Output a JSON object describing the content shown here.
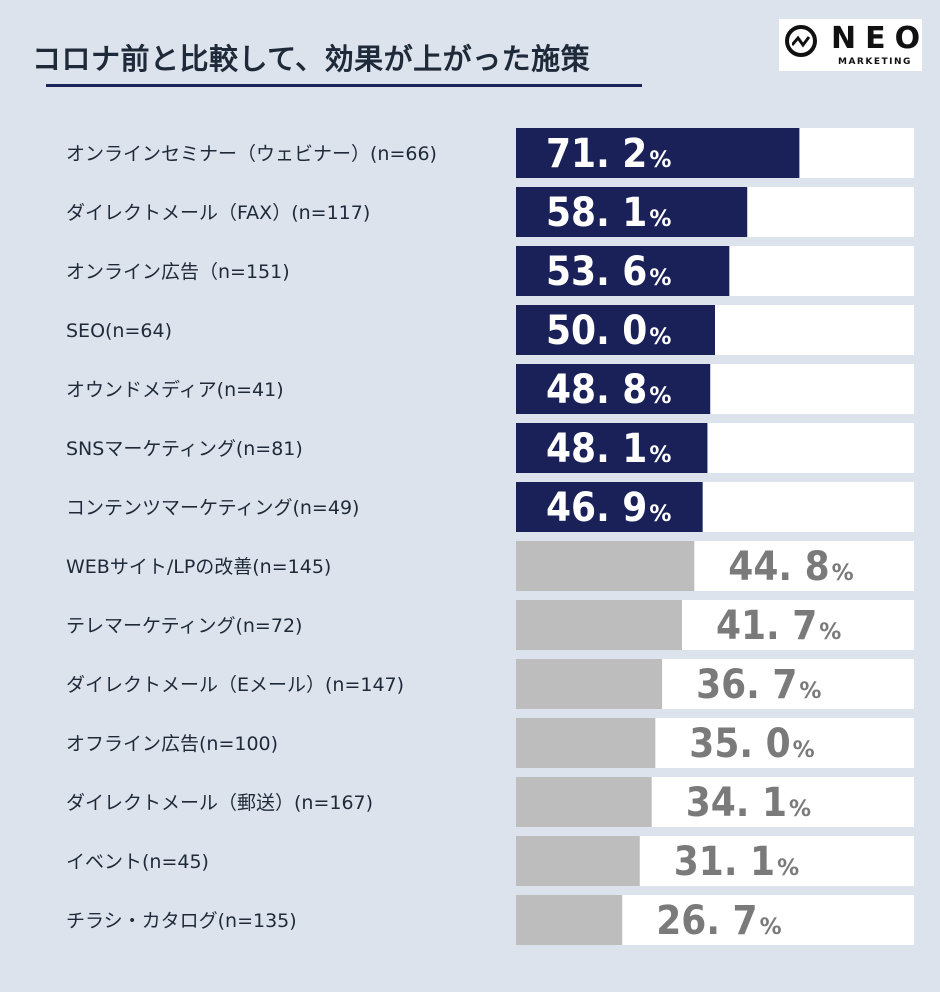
{
  "header": {
    "title": "コロナ前と比較して、効果が上がった施策",
    "logo_text": "NEO",
    "logo_sub": "MARKETING"
  },
  "colors": {
    "highlight_bar": "#1a2159",
    "other_bar": "#bdbdbd",
    "track": "#ffffff",
    "highlight_text": "#ffffff",
    "other_text": "#7a7a7a"
  },
  "chart_data": {
    "type": "bar",
    "orientation": "horizontal",
    "title": "コロナ前と比較して、効果が上がった施策",
    "unit": "%",
    "xlim": [
      0,
      100
    ],
    "highlight_count": 7,
    "categories": [
      "オンラインセミナー（ウェビナー）(n=66)",
      "ダイレクトメール（FAX）(n=117)",
      "オンライン広告（n=151)",
      "SEO(n=64)",
      "オウンドメディア(n=41)",
      "SNSマーケティング(n=81)",
      "コンテンツマーケティング(n=49)",
      "WEBサイト/LPの改善(n=145)",
      "テレマーケティング(n=72)",
      "ダイレクトメール（Eメール）(n=147)",
      "オフライン広告(n=100)",
      "ダイレクトメール（郵送）(n=167)",
      "イベント(n=45)",
      "チラシ・カタログ(n=135)"
    ],
    "values": [
      71.2,
      58.1,
      53.6,
      50.0,
      48.8,
      48.1,
      46.9,
      44.8,
      41.7,
      36.7,
      35.0,
      34.1,
      31.1,
      26.7
    ]
  }
}
